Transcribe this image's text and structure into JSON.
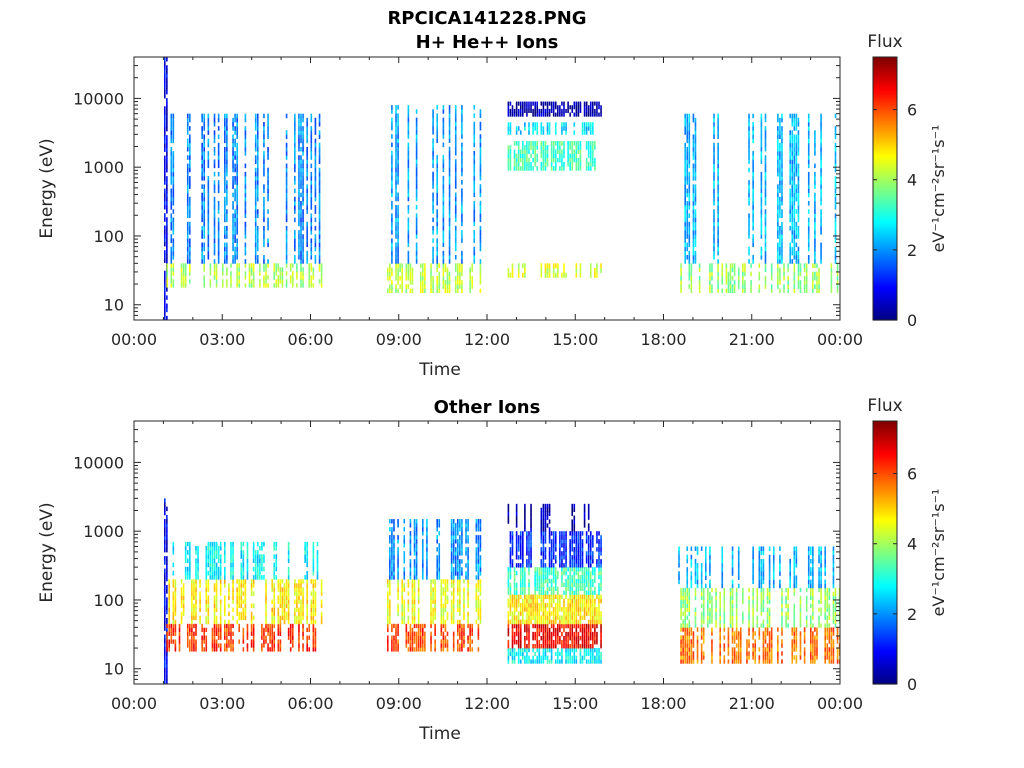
{
  "figure": {
    "title_line1": "RPCICA141228.PNG",
    "title_line2": "H+ He++ Ions"
  },
  "chart_data": [
    {
      "type": "heatmap",
      "panel": "top",
      "title": "H+ He++ Ions",
      "xlabel": "Time",
      "ylabel": "Energy (eV)",
      "x_ticks": [
        "00:00",
        "03:00",
        "06:00",
        "09:00",
        "12:00",
        "15:00",
        "18:00",
        "21:00",
        "00:00"
      ],
      "xlim_hours": [
        0,
        24
      ],
      "y_scale": "log",
      "y_ticks": [
        10,
        100,
        1000,
        10000
      ],
      "y_tick_labels": [
        "10",
        "100",
        "1000",
        "10000"
      ],
      "ylim": [
        6,
        40000
      ],
      "colorbar": {
        "label_top": "Flux",
        "label_side": "eV⁻¹cm⁻²sr⁻¹s⁻¹",
        "ticks": [
          "0",
          "2",
          "4",
          "6"
        ],
        "range": [
          0,
          7.5
        ],
        "colormap": "jet"
      },
      "regions": [
        {
          "t0": 1.02,
          "t1": 1.1,
          "e0": 6,
          "e1": 40000,
          "flux": 0.8,
          "density": 1.0
        },
        {
          "t0": 1.1,
          "t1": 6.4,
          "e0": 18,
          "e1": 40,
          "flux": 4.1,
          "density": 0.55
        },
        {
          "t0": 1.1,
          "t1": 6.4,
          "e0": 40,
          "e1": 6000,
          "flux": 1.9,
          "density": 0.35
        },
        {
          "t0": 8.6,
          "t1": 11.8,
          "e0": 15,
          "e1": 40,
          "flux": 4.2,
          "density": 0.55
        },
        {
          "t0": 8.6,
          "t1": 11.8,
          "e0": 40,
          "e1": 8000,
          "flux": 2.1,
          "density": 0.4
        },
        {
          "t0": 12.7,
          "t1": 15.9,
          "e0": 5500,
          "e1": 9000,
          "flux": 0.3,
          "density": 0.95
        },
        {
          "t0": 12.7,
          "t1": 15.9,
          "e0": 3000,
          "e1": 4500,
          "flux": 2.6,
          "density": 0.6
        },
        {
          "t0": 12.7,
          "t1": 15.9,
          "e0": 900,
          "e1": 2400,
          "flux": 3.3,
          "density": 0.85
        },
        {
          "t0": 12.7,
          "t1": 15.9,
          "e0": 25,
          "e1": 40,
          "flux": 4.4,
          "density": 0.5
        },
        {
          "t0": 18.5,
          "t1": 24.0,
          "e0": 15,
          "e1": 40,
          "flux": 3.9,
          "density": 0.45
        },
        {
          "t0": 18.5,
          "t1": 24.0,
          "e0": 40,
          "e1": 6000,
          "flux": 2.3,
          "density": 0.3
        }
      ]
    },
    {
      "type": "heatmap",
      "panel": "bottom",
      "title": "Other Ions",
      "xlabel": "Time",
      "ylabel": "Energy (eV)",
      "x_ticks": [
        "00:00",
        "03:00",
        "06:00",
        "09:00",
        "12:00",
        "15:00",
        "18:00",
        "21:00",
        "00:00"
      ],
      "xlim_hours": [
        0,
        24
      ],
      "y_scale": "log",
      "y_ticks": [
        10,
        100,
        1000,
        10000
      ],
      "y_tick_labels": [
        "10",
        "100",
        "1000",
        "10000"
      ],
      "ylim": [
        6,
        40000
      ],
      "colorbar": {
        "label_top": "Flux",
        "label_side": "eV⁻¹cm⁻²sr⁻¹s⁻¹",
        "ticks": [
          "0",
          "2",
          "4",
          "6"
        ],
        "range": [
          0,
          7.5
        ],
        "colormap": "jet"
      },
      "regions": [
        {
          "t0": 1.02,
          "t1": 1.1,
          "e0": 6,
          "e1": 3000,
          "flux": 0.8,
          "density": 1.0
        },
        {
          "t0": 1.1,
          "t1": 6.4,
          "e0": 18,
          "e1": 45,
          "flux": 6.2,
          "density": 0.6
        },
        {
          "t0": 1.1,
          "t1": 6.4,
          "e0": 45,
          "e1": 200,
          "flux": 4.8,
          "density": 0.55
        },
        {
          "t0": 1.1,
          "t1": 6.4,
          "e0": 200,
          "e1": 700,
          "flux": 2.8,
          "density": 0.4
        },
        {
          "t0": 8.6,
          "t1": 11.8,
          "e0": 18,
          "e1": 45,
          "flux": 6.0,
          "density": 0.6
        },
        {
          "t0": 8.6,
          "t1": 11.8,
          "e0": 45,
          "e1": 200,
          "flux": 4.6,
          "density": 0.55
        },
        {
          "t0": 8.6,
          "t1": 11.8,
          "e0": 200,
          "e1": 1500,
          "flux": 2.0,
          "density": 0.4
        },
        {
          "t0": 12.7,
          "t1": 15.9,
          "e0": 12,
          "e1": 20,
          "flux": 2.8,
          "density": 0.95
        },
        {
          "t0": 12.7,
          "t1": 15.9,
          "e0": 20,
          "e1": 45,
          "flux": 6.6,
          "density": 0.95
        },
        {
          "t0": 12.7,
          "t1": 15.9,
          "e0": 45,
          "e1": 120,
          "flux": 4.8,
          "density": 0.95
        },
        {
          "t0": 12.7,
          "t1": 15.9,
          "e0": 120,
          "e1": 300,
          "flux": 3.3,
          "density": 0.9
        },
        {
          "t0": 12.7,
          "t1": 15.9,
          "e0": 300,
          "e1": 1000,
          "flux": 1.2,
          "density": 0.75
        },
        {
          "t0": 12.7,
          "t1": 15.9,
          "e0": 1000,
          "e1": 2500,
          "flux": 0.3,
          "density": 0.3
        },
        {
          "t0": 18.5,
          "t1": 24.0,
          "e0": 12,
          "e1": 40,
          "flux": 5.7,
          "density": 0.55
        },
        {
          "t0": 18.5,
          "t1": 24.0,
          "e0": 40,
          "e1": 150,
          "flux": 3.9,
          "density": 0.5
        },
        {
          "t0": 18.5,
          "t1": 24.0,
          "e0": 150,
          "e1": 600,
          "flux": 2.3,
          "density": 0.35
        }
      ]
    }
  ]
}
